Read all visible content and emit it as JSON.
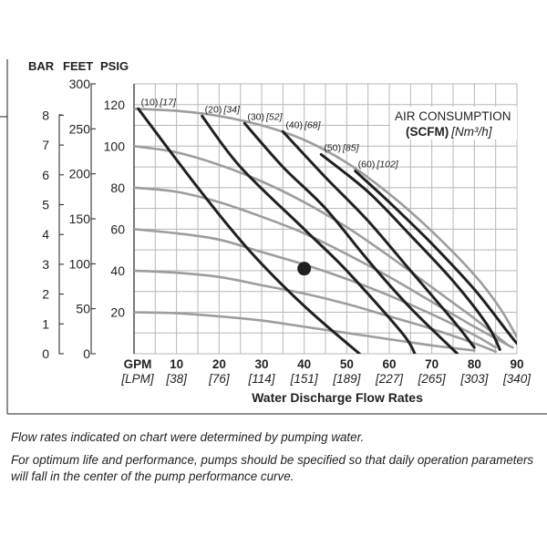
{
  "chart_data": {
    "type": "line",
    "unit_header": {
      "bar": "BAR",
      "feet": "FEET",
      "psig": "PSIG"
    },
    "y_psig": {
      "ticks": [
        20,
        40,
        60,
        80,
        100,
        120
      ],
      "range": [
        0,
        130
      ]
    },
    "y_feet": {
      "ticks": [
        0,
        50,
        100,
        150,
        200,
        250,
        300
      ]
    },
    "y_bar": {
      "ticks": [
        0,
        1,
        2,
        3,
        4,
        5,
        6,
        7,
        8
      ]
    },
    "x_gpm": {
      "unit_label": "GPM",
      "ticks": [
        10,
        20,
        30,
        40,
        50,
        60,
        70,
        80,
        90
      ],
      "range": [
        0,
        90
      ]
    },
    "x_lpm": {
      "unit_label": "[LPM]",
      "ticks": [
        "[38]",
        "[76]",
        "[114]",
        "[151]",
        "[189]",
        "[227]",
        "[265]",
        "[303]",
        "[340]"
      ]
    },
    "xlabel": "Water Discharge Flow Rates",
    "air_legend": {
      "line1": "AIR CONSUMPTION",
      "line2_bold": "(SCFM)",
      "line2_italic": "[Nm³/h]"
    },
    "head_curves": [
      {
        "points": [
          [
            0,
            118
          ],
          [
            10,
            117
          ],
          [
            20,
            114.5
          ],
          [
            30,
            110
          ],
          [
            40,
            103
          ],
          [
            50,
            92
          ],
          [
            60,
            77
          ],
          [
            70,
            59
          ],
          [
            80,
            38
          ],
          [
            86,
            22
          ],
          [
            90,
            8
          ]
        ]
      },
      {
        "points": [
          [
            0,
            100
          ],
          [
            10,
            97
          ],
          [
            20,
            91
          ],
          [
            30,
            83
          ],
          [
            40,
            73
          ],
          [
            50,
            61
          ],
          [
            60,
            47
          ],
          [
            70,
            32
          ],
          [
            80,
            17
          ],
          [
            88,
            4
          ]
        ]
      },
      {
        "points": [
          [
            0,
            80
          ],
          [
            10,
            78
          ],
          [
            20,
            73
          ],
          [
            30,
            66
          ],
          [
            40,
            58
          ],
          [
            50,
            48
          ],
          [
            60,
            37
          ],
          [
            70,
            25
          ],
          [
            80,
            13
          ],
          [
            89,
            3
          ]
        ]
      },
      {
        "points": [
          [
            0,
            60
          ],
          [
            10,
            58
          ],
          [
            20,
            55
          ],
          [
            30,
            49
          ],
          [
            40,
            43
          ],
          [
            50,
            36
          ],
          [
            60,
            28
          ],
          [
            70,
            19
          ],
          [
            80,
            9
          ],
          [
            85,
            3
          ]
        ]
      },
      {
        "points": [
          [
            0,
            40
          ],
          [
            10,
            39
          ],
          [
            20,
            37
          ],
          [
            30,
            33
          ],
          [
            40,
            29
          ],
          [
            50,
            24
          ],
          [
            60,
            18
          ],
          [
            70,
            12
          ],
          [
            80,
            5
          ],
          [
            85,
            1
          ]
        ]
      },
      {
        "points": [
          [
            0,
            20
          ],
          [
            10,
            19.5
          ],
          [
            20,
            18
          ],
          [
            30,
            16
          ],
          [
            40,
            13
          ],
          [
            50,
            10
          ],
          [
            60,
            7
          ],
          [
            70,
            4
          ],
          [
            80,
            1.5
          ]
        ]
      }
    ],
    "air_curves": [
      {
        "label": "(10)",
        "label_metric": "[17]",
        "points": [
          [
            1,
            118
          ],
          [
            15,
            80
          ],
          [
            27,
            50
          ],
          [
            40,
            23
          ],
          [
            53,
            0
          ]
        ]
      },
      {
        "label": "(20)",
        "label_metric": "[34]",
        "points": [
          [
            16,
            114.5
          ],
          [
            25,
            90
          ],
          [
            40,
            60
          ],
          [
            50,
            40
          ],
          [
            63,
            10
          ],
          [
            66,
            0
          ]
        ]
      },
      {
        "label": "(30)",
        "label_metric": "[52]",
        "points": [
          [
            26,
            111
          ],
          [
            35,
            90
          ],
          [
            45,
            70
          ],
          [
            55,
            45
          ],
          [
            65,
            22
          ],
          [
            76,
            0
          ]
        ]
      },
      {
        "label": "(40)",
        "label_metric": "[68]",
        "points": [
          [
            35,
            107
          ],
          [
            45,
            85
          ],
          [
            55,
            64
          ],
          [
            65,
            40
          ],
          [
            75,
            16
          ],
          [
            80,
            3
          ]
        ]
      },
      {
        "label": "(50)",
        "label_metric": "[85]",
        "points": [
          [
            44,
            96
          ],
          [
            55,
            78
          ],
          [
            65,
            57
          ],
          [
            75,
            35
          ],
          [
            83,
            14
          ],
          [
            86,
            2
          ]
        ]
      },
      {
        "label": "(60)",
        "label_metric": "[102]",
        "points": [
          [
            52,
            88
          ],
          [
            60,
            73
          ],
          [
            70,
            53
          ],
          [
            80,
            31
          ],
          [
            88,
            10
          ],
          [
            90,
            5
          ]
        ]
      }
    ],
    "operating_point": {
      "x": 40,
      "y": 41
    }
  },
  "notes": {
    "line1": "Flow rates indicated on chart were determined by pumping water.",
    "line2": "For optimum life and performance, pumps should be specified so that daily operation parameters will fall in the center of the pump performance curve."
  }
}
